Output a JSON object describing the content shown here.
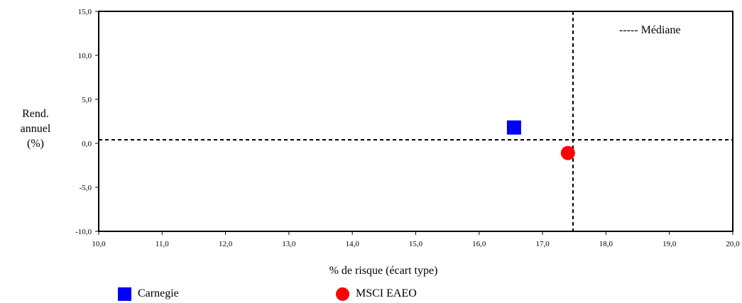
{
  "chart_data": {
    "type": "scatter",
    "xlabel": "% de risque (écart type)",
    "ylabel": [
      "Rend.",
      "annuel",
      "(%)"
    ],
    "xlim": [
      10,
      20
    ],
    "ylim": [
      -10,
      15
    ],
    "x_ticks": [
      "10,0",
      "11,0",
      "12,0",
      "13,0",
      "14,0",
      "15,0",
      "16,0",
      "17,0",
      "18,0",
      "19,0",
      "20,0"
    ],
    "y_ticks": [
      "15,0",
      "10,0",
      "5,0",
      "0,0",
      "-5,0",
      "-10,0"
    ],
    "x_tick_values": [
      10,
      11,
      12,
      13,
      14,
      15,
      16,
      17,
      18,
      19,
      20
    ],
    "y_tick_values": [
      15,
      10,
      5,
      0,
      -5,
      -10
    ],
    "grid": false,
    "median": {
      "label": "----- Médiane",
      "x": 17.48,
      "y": 0.4
    },
    "series": [
      {
        "name": "Carnegie",
        "marker": "square",
        "color": "#0000ff",
        "x": 16.55,
        "y": 1.8
      },
      {
        "name": "MSCI EAEO",
        "marker": "circle",
        "color": "#ff0000",
        "x": 17.4,
        "y": -1.1
      }
    ],
    "legend_position": "bottom"
  }
}
